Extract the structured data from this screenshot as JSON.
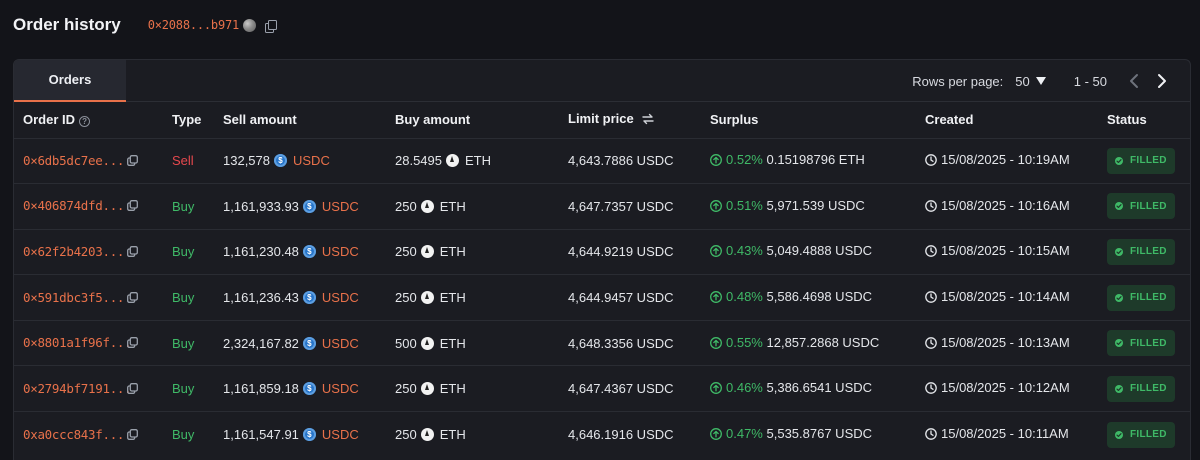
{
  "header": {
    "title": "Order history",
    "address": "0×2088...b971"
  },
  "tabs": [
    {
      "label": "Orders"
    }
  ],
  "pager": {
    "rows_label": "Rows per page:",
    "rows_value": "50",
    "range": "1 - 50"
  },
  "columns": {
    "order_id": "Order ID",
    "type": "Type",
    "sell": "Sell amount",
    "buy": "Buy amount",
    "limit": "Limit price",
    "surplus": "Surplus",
    "created": "Created",
    "status": "Status"
  },
  "colors": {
    "accent": "#e8714a",
    "buy": "#3fb967",
    "sell": "#e5484d",
    "filled_bg": "#1e3a2a"
  },
  "orders": [
    {
      "id": "0×6db5dc7ee...",
      "type": "Sell",
      "type_class": "sell",
      "sell_amount": "132,578",
      "sell_token": "USDC",
      "sell_token_icon": "usdc",
      "buy_amount": "28.5495",
      "buy_token": "ETH",
      "buy_token_icon": "eth",
      "limit_price": "4,643.7886 USDC",
      "surplus_pct": "0.52%",
      "surplus_value": "0.15198796 ETH",
      "created": "15/08/2025 - 10:19AM",
      "status": "FILLED"
    },
    {
      "id": "0×406874dfd...",
      "type": "Buy",
      "type_class": "buy",
      "sell_amount": "1,161,933.93",
      "sell_token": "USDC",
      "sell_token_icon": "usdc",
      "buy_amount": "250",
      "buy_token": "ETH",
      "buy_token_icon": "eth",
      "limit_price": "4,647.7357 USDC",
      "surplus_pct": "0.51%",
      "surplus_value": "5,971.539 USDC",
      "created": "15/08/2025 - 10:16AM",
      "status": "FILLED"
    },
    {
      "id": "0×62f2b4203...",
      "type": "Buy",
      "type_class": "buy",
      "sell_amount": "1,161,230.48",
      "sell_token": "USDC",
      "sell_token_icon": "usdc",
      "buy_amount": "250",
      "buy_token": "ETH",
      "buy_token_icon": "eth",
      "limit_price": "4,644.9219 USDC",
      "surplus_pct": "0.43%",
      "surplus_value": "5,049.4888 USDC",
      "created": "15/08/2025 - 10:15AM",
      "status": "FILLED"
    },
    {
      "id": "0×591dbc3f5...",
      "type": "Buy",
      "type_class": "buy",
      "sell_amount": "1,161,236.43",
      "sell_token": "USDC",
      "sell_token_icon": "usdc",
      "buy_amount": "250",
      "buy_token": "ETH",
      "buy_token_icon": "eth",
      "limit_price": "4,644.9457 USDC",
      "surplus_pct": "0.48%",
      "surplus_value": "5,586.4698 USDC",
      "created": "15/08/2025 - 10:14AM",
      "status": "FILLED"
    },
    {
      "id": "0×8801a1f96f...",
      "type": "Buy",
      "type_class": "buy",
      "sell_amount": "2,324,167.82",
      "sell_token": "USDC",
      "sell_token_icon": "usdc",
      "buy_amount": "500",
      "buy_token": "ETH",
      "buy_token_icon": "eth",
      "limit_price": "4,648.3356 USDC",
      "surplus_pct": "0.55%",
      "surplus_value": "12,857.2868 USDC",
      "created": "15/08/2025 - 10:13AM",
      "status": "FILLED"
    },
    {
      "id": "0×2794bf7191...",
      "type": "Buy",
      "type_class": "buy",
      "sell_amount": "1,161,859.18",
      "sell_token": "USDC",
      "sell_token_icon": "usdc",
      "buy_amount": "250",
      "buy_token": "ETH",
      "buy_token_icon": "eth",
      "limit_price": "4,647.4367 USDC",
      "surplus_pct": "0.46%",
      "surplus_value": "5,386.6541 USDC",
      "created": "15/08/2025 - 10:12AM",
      "status": "FILLED"
    },
    {
      "id": "0xa0ccc843f...",
      "type": "Buy",
      "type_class": "buy",
      "sell_amount": "1,161,547.91",
      "sell_token": "USDC",
      "sell_token_icon": "usdc",
      "buy_amount": "250",
      "buy_token": "ETH",
      "buy_token_icon": "eth",
      "limit_price": "4,646.1916 USDC",
      "surplus_pct": "0.47%",
      "surplus_value": "5,535.8767 USDC",
      "created": "15/08/2025 - 10:11AM",
      "status": "FILLED"
    }
  ]
}
